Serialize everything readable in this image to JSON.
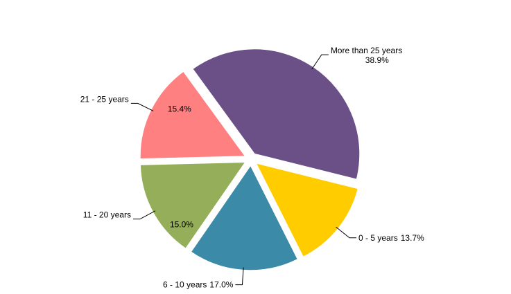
{
  "chart_data": {
    "type": "pie",
    "categories": [
      "More than 25 years",
      "0 - 5 years",
      "6 - 10 years",
      "11 - 20 years",
      "21 - 25 years"
    ],
    "values": [
      38.9,
      13.7,
      17.0,
      15.0,
      15.4
    ],
    "value_labels": [
      "38.9%",
      "13.7%",
      "17.0%",
      "15.0%",
      "15.4%"
    ],
    "colors": [
      "#6a5087",
      "#ffcc00",
      "#3a8aa8",
      "#94ae5a",
      "#ff8080"
    ]
  }
}
